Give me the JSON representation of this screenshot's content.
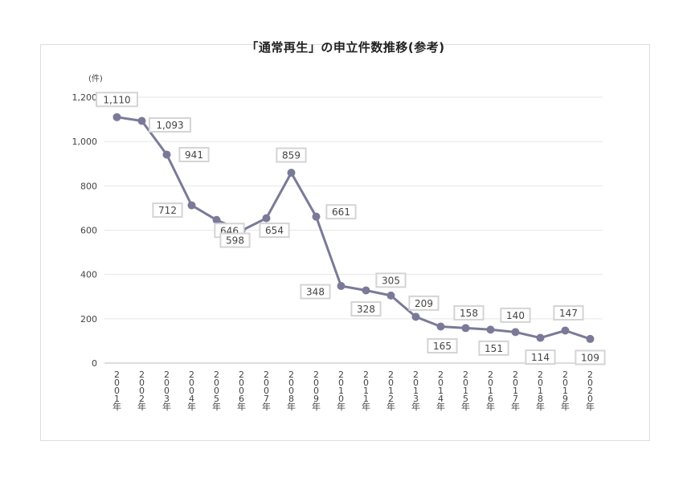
{
  "chart_data": {
    "type": "line",
    "title": "「通常再生」の申立件数推移(参考)",
    "ylabel": "(件)",
    "ylim": [
      0,
      1200
    ],
    "yticks": [
      "0",
      "200",
      "400",
      "600",
      "800",
      "1,000",
      "1,200"
    ],
    "grid": true,
    "categories": [
      "2001年",
      "2002年",
      "2003年",
      "2004年",
      "2005年",
      "2006年",
      "2007年",
      "2008年",
      "2009年",
      "2010年",
      "2011年",
      "2012年",
      "2013年",
      "2014年",
      "2015年",
      "2016年",
      "2017年",
      "2018年",
      "2019年",
      "2020年"
    ],
    "values": [
      1110,
      1093,
      941,
      712,
      646,
      598,
      654,
      859,
      661,
      348,
      328,
      305,
      209,
      165,
      158,
      151,
      140,
      114,
      147,
      109
    ],
    "value_labels": [
      "1,110",
      "1,093",
      "941",
      "712",
      "646",
      "598",
      "654",
      "859",
      "661",
      "348",
      "328",
      "305",
      "209",
      "165",
      "158",
      "151",
      "140",
      "114",
      "147",
      "109"
    ],
    "colors": {
      "line": "#7a7a98",
      "label_border": "#d4d4d4",
      "grid": "#e6e6e6"
    }
  }
}
